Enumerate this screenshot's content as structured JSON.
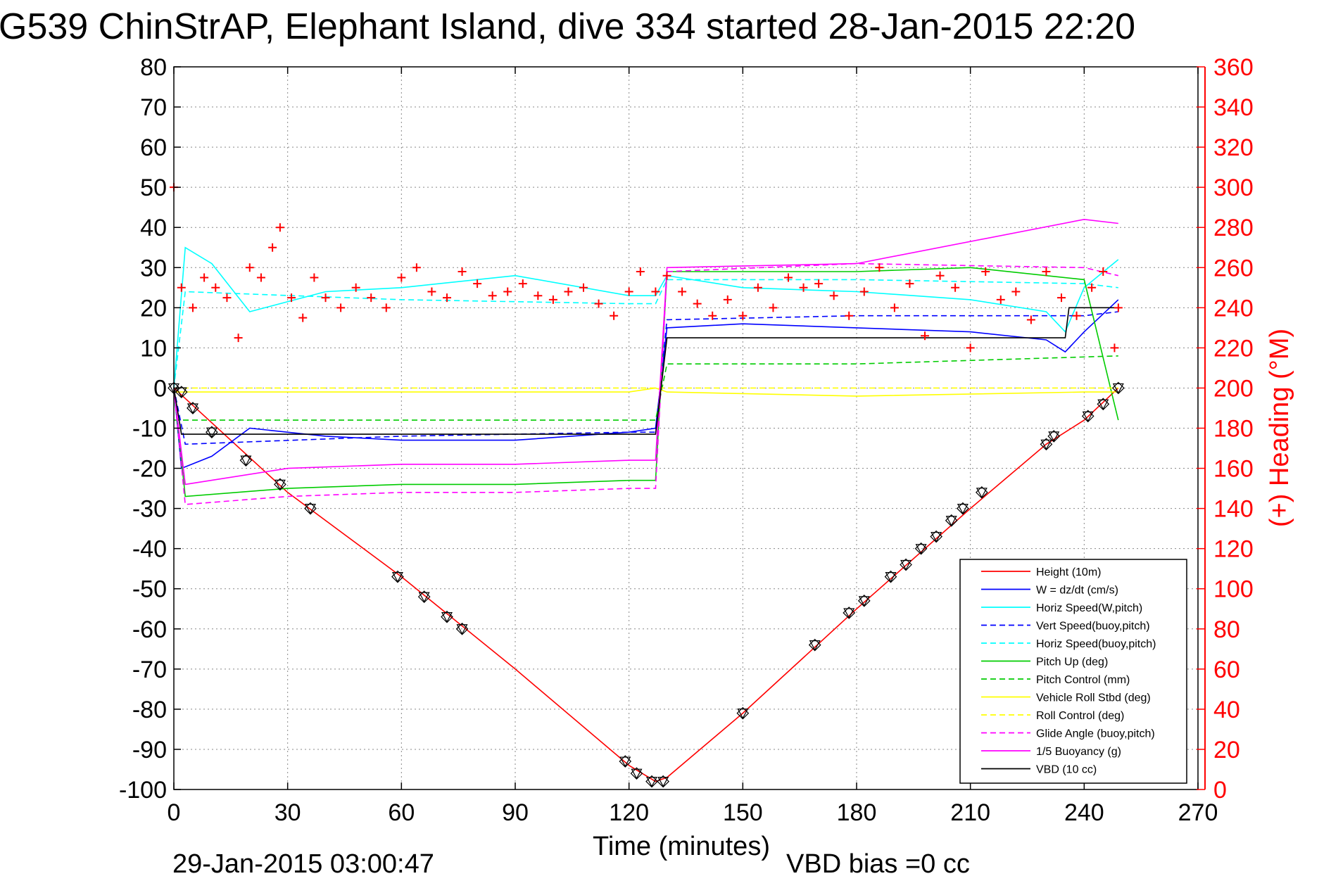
{
  "chart_data": {
    "type": "line",
    "title": "G539 ChinStrAP, Elephant Island, dive 334 started 28-Jan-2015 22:20",
    "xlabel": "Time (minutes)",
    "ylabel": "",
    "y2label": "(+) Heading (°M)",
    "footer_left": "29-Jan-2015 03:00:47",
    "footer_right": "VBD bias =0 cc",
    "xlim": [
      0,
      270
    ],
    "ylim": [
      -100,
      80
    ],
    "y2lim": [
      0,
      360
    ],
    "xticks": [
      0,
      30,
      60,
      90,
      120,
      150,
      180,
      210,
      240,
      270
    ],
    "yticks": [
      80,
      70,
      60,
      50,
      40,
      30,
      20,
      10,
      0,
      -10,
      -20,
      -30,
      -40,
      -50,
      -60,
      -70,
      -80,
      -90,
      -100
    ],
    "y2ticks": [
      360,
      340,
      320,
      300,
      280,
      260,
      240,
      220,
      200,
      180,
      160,
      140,
      120,
      100,
      80,
      60,
      40,
      20,
      0
    ],
    "grid": true,
    "legend_position": "bottom-right",
    "series": [
      {
        "name": "Height (10m)",
        "color": "#ff0000",
        "style": "solid",
        "x": [
          0,
          30,
          60,
          90,
          120,
          127,
          130,
          150,
          180,
          210,
          230,
          240,
          249
        ],
        "y": [
          0,
          -26,
          -47,
          -70,
          -94,
          -98,
          -97,
          -81,
          -55,
          -30,
          -14,
          -8,
          0
        ]
      },
      {
        "name": "W = dz/dt (cm/s)",
        "color": "#0000ff",
        "style": "solid",
        "x": [
          0,
          2,
          10,
          20,
          40,
          60,
          90,
          120,
          127,
          130,
          150,
          180,
          210,
          230,
          235,
          240,
          249
        ],
        "y": [
          0,
          -20,
          -17,
          -10,
          -12,
          -13,
          -13,
          -11,
          -10,
          15,
          16,
          15,
          14,
          12,
          9,
          14,
          22
        ]
      },
      {
        "name": "Horiz Speed(W,pitch)",
        "color": "#00ffff",
        "style": "solid",
        "x": [
          0,
          3,
          10,
          20,
          40,
          60,
          90,
          120,
          127,
          130,
          150,
          180,
          210,
          230,
          235,
          240,
          249
        ],
        "y": [
          0,
          35,
          31,
          19,
          24,
          25,
          28,
          23,
          23,
          28,
          25,
          24,
          22,
          19,
          14,
          25,
          32
        ]
      },
      {
        "name": "Vert Speed(buoy,pitch)",
        "color": "#0000ff",
        "style": "dash",
        "x": [
          0,
          3,
          60,
          120,
          127,
          130,
          180,
          240,
          249
        ],
        "y": [
          0,
          -14,
          -12,
          -11,
          -11,
          17,
          18,
          18,
          19
        ]
      },
      {
        "name": "Horiz Speed(buoy,pitch)",
        "color": "#00ffff",
        "style": "dash",
        "x": [
          0,
          3,
          60,
          120,
          127,
          130,
          180,
          240,
          249
        ],
        "y": [
          0,
          24,
          22,
          21,
          21,
          27,
          27,
          26,
          25
        ]
      },
      {
        "name": "Pitch Up (deg)",
        "color": "#00cc00",
        "style": "solid",
        "x": [
          0,
          3,
          30,
          60,
          90,
          120,
          127,
          130,
          150,
          180,
          210,
          240,
          249
        ],
        "y": [
          0,
          -27,
          -25,
          -24,
          -24,
          -23,
          -23,
          29,
          29,
          29,
          30,
          27,
          -8
        ]
      },
      {
        "name": "Pitch Control (mm)",
        "color": "#00cc00",
        "style": "dash",
        "x": [
          0,
          120,
          127,
          130,
          180,
          249
        ],
        "y": [
          -8,
          -8,
          -8,
          6,
          6,
          8
        ]
      },
      {
        "name": "Vehicle Roll Stbd (deg)",
        "color": "#ffff00",
        "style": "solid",
        "x": [
          0,
          60,
          120,
          127,
          130,
          180,
          240,
          249
        ],
        "y": [
          -1,
          -1,
          -1,
          0,
          -1,
          -2,
          -1,
          -1
        ]
      },
      {
        "name": "Roll Control (deg)",
        "color": "#ffff00",
        "style": "dash",
        "x": [
          0,
          249
        ],
        "y": [
          0,
          0
        ]
      },
      {
        "name": "Glide Angle (buoy,pitch)",
        "color": "#ff00ff",
        "style": "dash",
        "x": [
          0,
          3,
          30,
          60,
          90,
          120,
          127,
          130,
          180,
          240,
          249
        ],
        "y": [
          0,
          -29,
          -27,
          -26,
          -26,
          -25,
          -25,
          29,
          31,
          30,
          28
        ]
      },
      {
        "name": "1/5 Buoyancy (g)",
        "color": "#ff00ff",
        "style": "solid",
        "x": [
          0,
          3,
          30,
          60,
          90,
          120,
          127,
          130,
          180,
          240,
          249
        ],
        "y": [
          0,
          -24,
          -20,
          -19,
          -19,
          -18,
          -18,
          30,
          31,
          42,
          41
        ]
      },
      {
        "name": "VBD (10 cc)",
        "color": "#000000",
        "style": "solid",
        "x": [
          0,
          2,
          127,
          130,
          235,
          236,
          249
        ],
        "y": [
          0,
          -11.5,
          -11.5,
          12.5,
          12.5,
          20,
          20
        ]
      }
    ],
    "heading_series": {
      "color": "#ff0000",
      "marker": "+",
      "axis": "right",
      "x": [
        0,
        2,
        5,
        8,
        11,
        14,
        17,
        20,
        23,
        26,
        28,
        31,
        34,
        37,
        40,
        44,
        48,
        52,
        56,
        60,
        64,
        68,
        72,
        76,
        80,
        84,
        88,
        92,
        96,
        100,
        104,
        108,
        112,
        116,
        120,
        123,
        127,
        130,
        134,
        138,
        142,
        146,
        150,
        154,
        158,
        162,
        166,
        170,
        174,
        178,
        182,
        186,
        190,
        194,
        198,
        202,
        206,
        210,
        214,
        218,
        222,
        226,
        230,
        234,
        238,
        242,
        245,
        248,
        249
      ],
      "y": [
        300,
        250,
        240,
        255,
        250,
        245,
        225,
        260,
        255,
        270,
        280,
        245,
        235,
        255,
        245,
        240,
        250,
        245,
        240,
        255,
        260,
        248,
        245,
        258,
        252,
        246,
        248,
        252,
        246,
        244,
        248,
        250,
        242,
        236,
        248,
        258,
        248,
        256,
        248,
        242,
        236,
        244,
        236,
        250,
        240,
        255,
        250,
        252,
        246,
        236,
        248,
        260,
        240,
        252,
        226,
        256,
        250,
        220,
        258,
        244,
        248,
        234,
        258,
        245,
        236,
        250,
        258,
        220,
        240
      ]
    },
    "markers": {
      "series": "Height (10m)",
      "symbol": "triangle-diamond",
      "x": [
        0,
        2,
        5,
        10,
        19,
        28,
        36,
        59,
        66,
        72,
        76,
        119,
        122,
        126,
        129,
        150,
        169,
        178,
        182,
        189,
        193,
        197,
        201,
        205,
        208,
        213,
        230,
        232,
        241,
        245,
        249
      ],
      "y": [
        0,
        -1,
        -5,
        -11,
        -18,
        -24,
        -30,
        -47,
        -52,
        -57,
        -60,
        -93,
        -96,
        -98,
        -98,
        -81,
        -64,
        -56,
        -53,
        -47,
        -44,
        -40,
        -37,
        -33,
        -30,
        -26,
        -14,
        -12,
        -7,
        -4,
        0
      ]
    }
  }
}
